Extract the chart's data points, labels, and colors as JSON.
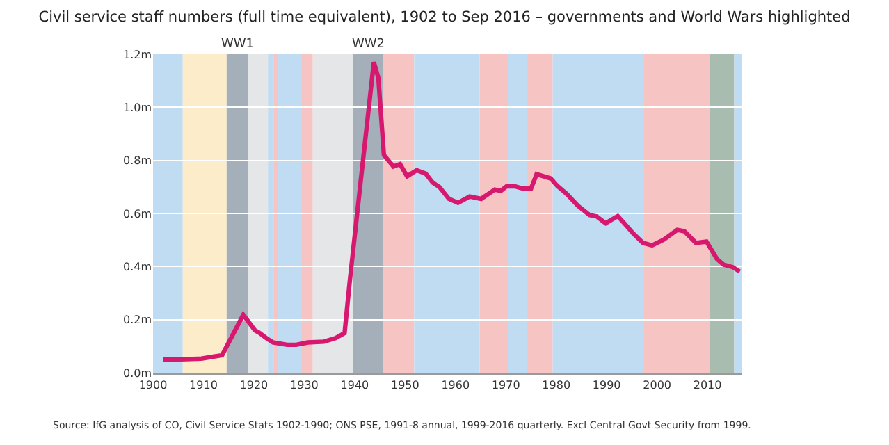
{
  "chart_data": {
    "type": "line",
    "title": "Civil service staff numbers (full time equivalent), 1902 to Sep 2016 – governments and World Wars highlighted",
    "x": [
      1902,
      1905.5,
      1909.6,
      1913.7,
      1917.9,
      1920.2,
      1921.1,
      1922.5,
      1923.8,
      1926.6,
      1928.4,
      1930.7,
      1933.9,
      1936.2,
      1938,
      1939,
      1941.3,
      1943.8,
      1944.7,
      1945.8,
      1947.7,
      1949,
      1950.4,
      1952.3,
      1954.1,
      1955.5,
      1956.8,
      1958.7,
      1960.5,
      1962.8,
      1965.1,
      1967.8,
      1969,
      1970.1,
      1971.9,
      1973.3,
      1975,
      1976.1,
      1978.9,
      1980.2,
      1982.1,
      1984.3,
      1986.6,
      1988,
      1989.8,
      1992.2,
      1993.5,
      1995.3,
      1997.2,
      1999,
      2001.3,
      2004,
      2005.4,
      2007.7,
      2009.8,
      2011.9,
      2013.2,
      2015,
      2016.4
    ],
    "series": [
      {
        "color": "#d6196e",
        "values": [
          0.05,
          0.05,
          0.053,
          0.066,
          0.218,
          0.16,
          0.15,
          0.13,
          0.114,
          0.105,
          0.105,
          0.114,
          0.117,
          0.13,
          0.149,
          0.34,
          0.74,
          1.17,
          1.11,
          0.82,
          0.777,
          0.786,
          0.74,
          0.763,
          0.75,
          0.716,
          0.7,
          0.655,
          0.64,
          0.664,
          0.655,
          0.69,
          0.685,
          0.702,
          0.702,
          0.694,
          0.694,
          0.748,
          0.732,
          0.704,
          0.673,
          0.629,
          0.594,
          0.589,
          0.563,
          0.59,
          0.563,
          0.524,
          0.489,
          0.48,
          0.501,
          0.538,
          0.533,
          0.489,
          0.494,
          0.428,
          0.407,
          0.398,
          0.381
        ]
      }
    ],
    "xlim": [
      1900,
      2016.75
    ],
    "ylim": [
      0,
      1.2
    ],
    "xticks": [
      1900,
      1910,
      1920,
      1930,
      1940,
      1950,
      1960,
      1970,
      1980,
      1990,
      2000,
      2010
    ],
    "yticks": [
      {
        "value": 0,
        "label": "0.0m"
      },
      {
        "value": 0.2,
        "label": "0.2m"
      },
      {
        "value": 0.4,
        "label": "0.4m"
      },
      {
        "value": 0.6,
        "label": "0.6m"
      },
      {
        "value": 0.8,
        "label": "0.8m"
      },
      {
        "value": 1.0,
        "label": "1.0m"
      },
      {
        "value": 1.2,
        "label": "1.2m"
      }
    ],
    "grid": "y",
    "tick_labels": "xy",
    "bands": [
      {
        "axis": "x",
        "from": 1900,
        "to": 1905.9,
        "color": "#bfdcf2"
      },
      {
        "axis": "x",
        "from": 1905.9,
        "to": 1914.6,
        "color": "#fdecca"
      },
      {
        "axis": "x",
        "from": 1914.6,
        "to": 1918.9,
        "color": "#a4afba",
        "label": "WW1"
      },
      {
        "axis": "x",
        "from": 1918.9,
        "to": 1922.8,
        "color": "#e5e6e8"
      },
      {
        "axis": "x",
        "from": 1922.8,
        "to": 1924,
        "color": "#bfdcf2"
      },
      {
        "axis": "x",
        "from": 1924,
        "to": 1924.8,
        "color": "#f5c4c3"
      },
      {
        "axis": "x",
        "from": 1924.8,
        "to": 1929.4,
        "color": "#bfdcf2"
      },
      {
        "axis": "x",
        "from": 1929.4,
        "to": 1931.7,
        "color": "#f5c4c3"
      },
      {
        "axis": "x",
        "from": 1931.7,
        "to": 1939.7,
        "color": "#e5e6e8"
      },
      {
        "axis": "x",
        "from": 1939.7,
        "to": 1945.6,
        "color": "#a4afba",
        "label": "WW2"
      },
      {
        "axis": "x",
        "from": 1945.6,
        "to": 1951.8,
        "color": "#f5c4c3"
      },
      {
        "axis": "x",
        "from": 1951.8,
        "to": 1964.8,
        "color": "#bfdcf2"
      },
      {
        "axis": "x",
        "from": 1964.8,
        "to": 1970.5,
        "color": "#f5c4c3"
      },
      {
        "axis": "x",
        "from": 1970.5,
        "to": 1974.2,
        "color": "#bfdcf2"
      },
      {
        "axis": "x",
        "from": 1974.2,
        "to": 1979.3,
        "color": "#f5c4c3"
      },
      {
        "axis": "x",
        "from": 1979.3,
        "to": 1997.3,
        "color": "#bfdcf2"
      },
      {
        "axis": "x",
        "from": 1997.3,
        "to": 2010.4,
        "color": "#f5c4c3"
      },
      {
        "axis": "x",
        "from": 2010.4,
        "to": 2015.3,
        "color": "#a8bcb0"
      },
      {
        "axis": "x",
        "from": 2015.3,
        "to": 2016.75,
        "color": "#bfdcf2"
      }
    ],
    "annotations": [
      "Source: IfG analysis of CO, Civil Service Stats 1902-1990; ONS PSE, 1991-8 annual, 1999-2016 quarterly. Excl Central Govt Security from 1999."
    ]
  }
}
